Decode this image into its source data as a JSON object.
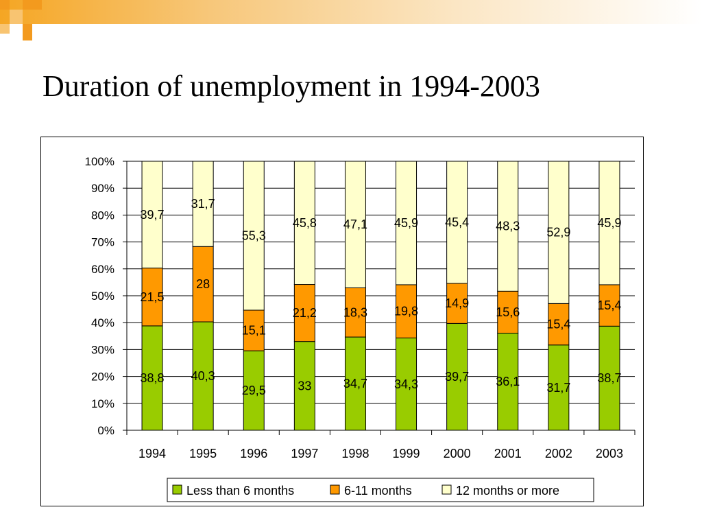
{
  "slide": {
    "title": "Duration of unemployment in 1994-2003"
  },
  "chart_data": {
    "type": "bar",
    "stacked": true,
    "normalized": true,
    "categories": [
      "1994",
      "1995",
      "1996",
      "1997",
      "1998",
      "1999",
      "2000",
      "2001",
      "2002",
      "2003"
    ],
    "series": [
      {
        "name": "Less than 6 months",
        "color": "#99cc00",
        "values": [
          38.8,
          40.3,
          29.5,
          33,
          34.7,
          34.3,
          39.7,
          36.1,
          31.7,
          38.7
        ],
        "labels": [
          "38,8",
          "40,3",
          "29,5",
          "33",
          "34,7",
          "34,3",
          "39,7",
          "36,1",
          "31,7",
          "38,7"
        ]
      },
      {
        "name": "6-11 months",
        "color": "#ff9900",
        "values": [
          21.5,
          28,
          15.1,
          21.2,
          18.3,
          19.8,
          14.9,
          15.6,
          15.4,
          15.4
        ],
        "labels": [
          "21,5",
          "28",
          "15,1",
          "21,2",
          "18,3",
          "19,8",
          "14,9",
          "15,6",
          "15,4",
          "15,4"
        ]
      },
      {
        "name": "12 months or more",
        "color": "#ffffcc",
        "values": [
          39.7,
          31.7,
          55.3,
          45.8,
          47.1,
          45.9,
          45.4,
          48.3,
          52.9,
          45.9
        ],
        "labels": [
          "39,7",
          "31,7",
          "55,3",
          "45,8",
          "47,1",
          "45,9",
          "45,4",
          "48,3",
          "52,9",
          "45,9"
        ]
      }
    ],
    "ylim": [
      0,
      100
    ],
    "yticks": [
      "0%",
      "10%",
      "20%",
      "30%",
      "40%",
      "50%",
      "60%",
      "70%",
      "80%",
      "90%",
      "100%"
    ],
    "grid": true,
    "legend": "bottom"
  }
}
